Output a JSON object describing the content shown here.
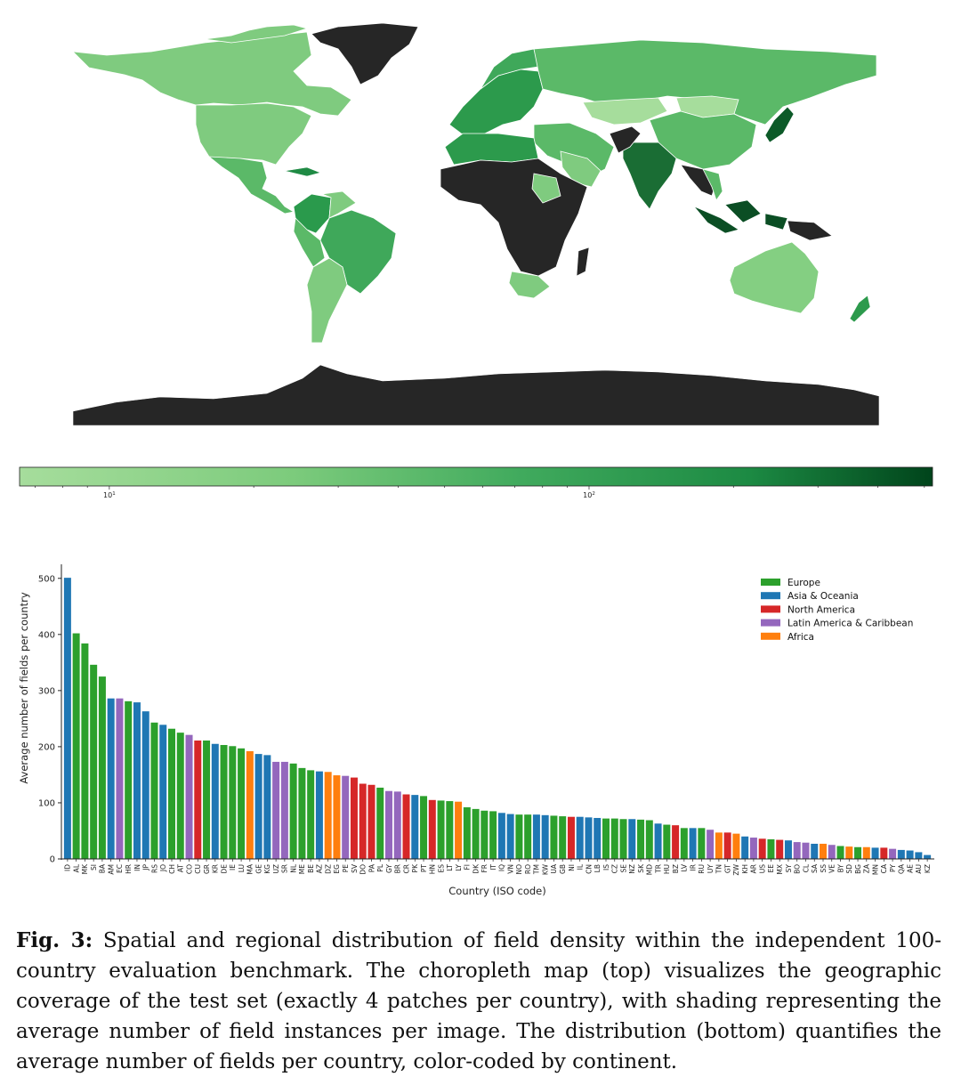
{
  "map": {
    "colorbar": {
      "scale": "log",
      "min_color": "#a3dc9a",
      "max_color": "#00441b",
      "ticks": [
        {
          "label": "10",
          "exp": "1",
          "value": 10
        },
        {
          "label": "10",
          "exp": "2",
          "value": 100
        }
      ]
    },
    "no_data_color": "#262626"
  },
  "chart_data": {
    "type": "bar",
    "xlabel": "Country (ISO code)",
    "ylabel": "Average number of fields per country",
    "ylim": [
      0,
      525
    ],
    "yticks": [
      0,
      100,
      200,
      300,
      400,
      500
    ],
    "legend_position": "top-right",
    "legend": [
      {
        "name": "Europe",
        "color": "#2ca02c"
      },
      {
        "name": "Asia & Oceania",
        "color": "#1f77b4"
      },
      {
        "name": "North America",
        "color": "#d62728"
      },
      {
        "name": "Latin America & Caribbean",
        "color": "#9467bd"
      },
      {
        "name": "Africa",
        "color": "#ff7f0e"
      }
    ],
    "categories": [
      "ID",
      "AL",
      "MK",
      "SI",
      "BA",
      "AM",
      "EC",
      "HR",
      "IN",
      "JP",
      "RS",
      "JO",
      "CH",
      "AT",
      "CO",
      "CU",
      "GR",
      "KR",
      "DE",
      "IE",
      "LU",
      "MA",
      "GE",
      "KG",
      "UZ",
      "SR",
      "NL",
      "ME",
      "BE",
      "AZ",
      "DZ",
      "EG",
      "PE",
      "SV",
      "DO",
      "PA",
      "PL",
      "GY",
      "BR",
      "CR",
      "PK",
      "PT",
      "HN",
      "ES",
      "LT",
      "LY",
      "FI",
      "DK",
      "FR",
      "IT",
      "IQ",
      "VN",
      "NO",
      "RO",
      "TM",
      "KW",
      "UA",
      "GB",
      "NI",
      "IL",
      "CN",
      "LB",
      "IS",
      "CZ",
      "SE",
      "NZ",
      "SK",
      "MD",
      "TR",
      "HU",
      "BZ",
      "LV",
      "IR",
      "RU",
      "UY",
      "TN",
      "GT",
      "ZW",
      "KH",
      "AR",
      "US",
      "EE",
      "MX",
      "SY",
      "BO",
      "CL",
      "SA",
      "SS",
      "VE",
      "BY",
      "SD",
      "BG",
      "ZA",
      "MN",
      "CA",
      "PY",
      "QA",
      "AE",
      "AU",
      "KZ"
    ],
    "values": [
      501,
      402,
      384,
      346,
      325,
      286,
      286,
      281,
      279,
      263,
      243,
      239,
      232,
      225,
      221,
      211,
      211,
      205,
      203,
      201,
      197,
      192,
      187,
      185,
      173,
      173,
      170,
      162,
      158,
      156,
      155,
      149,
      148,
      145,
      134,
      132,
      127,
      121,
      120,
      115,
      114,
      112,
      105,
      104,
      103,
      102,
      92,
      89,
      86,
      85,
      82,
      80,
      79,
      79,
      79,
      78,
      77,
      76,
      75,
      75,
      74,
      73,
      72,
      72,
      71,
      71,
      70,
      69,
      63,
      61,
      60,
      55,
      55,
      55,
      52,
      47,
      47,
      45,
      40,
      38,
      36,
      35,
      34,
      33,
      30,
      29,
      27,
      27,
      25,
      23,
      22,
      21,
      21,
      20,
      20,
      18,
      16,
      15,
      12,
      7
    ],
    "continents": [
      "Asia & Oceania",
      "Europe",
      "Europe",
      "Europe",
      "Europe",
      "Asia & Oceania",
      "Latin America & Caribbean",
      "Europe",
      "Asia & Oceania",
      "Asia & Oceania",
      "Europe",
      "Asia & Oceania",
      "Europe",
      "Europe",
      "Latin America & Caribbean",
      "North America",
      "Europe",
      "Asia & Oceania",
      "Europe",
      "Europe",
      "Europe",
      "Africa",
      "Asia & Oceania",
      "Asia & Oceania",
      "Latin America & Caribbean",
      "Latin America & Caribbean",
      "Europe",
      "Europe",
      "Europe",
      "Asia & Oceania",
      "Africa",
      "Africa",
      "Latin America & Caribbean",
      "North America",
      "North America",
      "North America",
      "Europe",
      "Latin America & Caribbean",
      "Latin America & Caribbean",
      "North America",
      "Asia & Oceania",
      "Europe",
      "North America",
      "Europe",
      "Europe",
      "Africa",
      "Europe",
      "Europe",
      "Europe",
      "Europe",
      "Asia & Oceania",
      "Asia & Oceania",
      "Europe",
      "Europe",
      "Asia & Oceania",
      "Asia & Oceania",
      "Europe",
      "Europe",
      "North America",
      "Asia & Oceania",
      "Asia & Oceania",
      "Asia & Oceania",
      "Europe",
      "Europe",
      "Europe",
      "Asia & Oceania",
      "Europe",
      "Europe",
      "Asia & Oceania",
      "Europe",
      "North America",
      "Europe",
      "Asia & Oceania",
      "Europe",
      "Latin America & Caribbean",
      "Africa",
      "North America",
      "Africa",
      "Asia & Oceania",
      "Latin America & Caribbean",
      "North America",
      "Europe",
      "North America",
      "Asia & Oceania",
      "Latin America & Caribbean",
      "Latin America & Caribbean",
      "Asia & Oceania",
      "Africa",
      "Latin America & Caribbean",
      "Europe",
      "Africa",
      "Europe",
      "Africa",
      "Asia & Oceania",
      "North America",
      "Latin America & Caribbean",
      "Asia & Oceania",
      "Asia & Oceania",
      "Asia & Oceania",
      "Asia & Oceania"
    ]
  },
  "caption": {
    "label": "Fig. 3:",
    "text": " Spatial and regional distribution of field density within the independent 100-country evaluation benchmark. The choropleth map (top) visualizes the geographic coverage of the test set (exactly 4 patches per country), with shading representing the average number of field instances per image. The distribution (bottom) quantifies the average number of fields per country, color-coded by continent."
  }
}
